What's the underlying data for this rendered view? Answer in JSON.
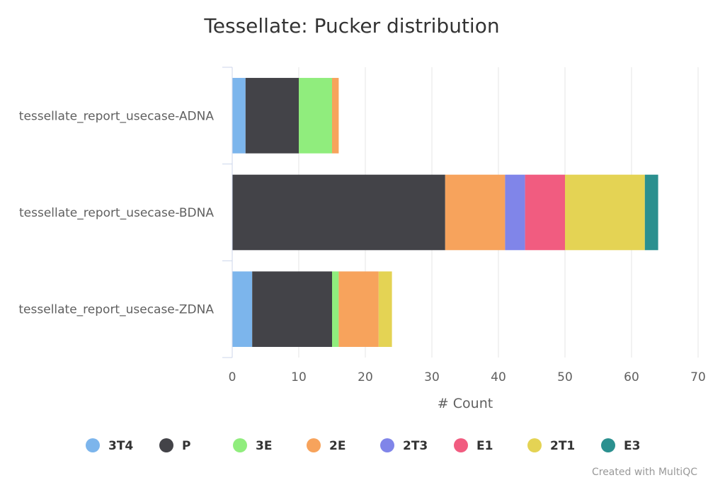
{
  "chart_data": {
    "type": "bar",
    "orientation": "horizontal",
    "stacked": true,
    "title": "Tessellate: Pucker distribution",
    "xlabel": "# Count",
    "xlim": [
      0,
      70
    ],
    "x_ticks": [
      "0",
      "10",
      "20",
      "30",
      "40",
      "50",
      "60",
      "70"
    ],
    "grid": true,
    "legend_position": "bottom",
    "categories": [
      "tessellate_report_usecase-ADNA",
      "tessellate_report_usecase-BDNA",
      "tessellate_report_usecase-ZDNA"
    ],
    "series": [
      {
        "name": "3T4",
        "color": "#7cb5ec",
        "values": [
          2,
          0,
          3
        ]
      },
      {
        "name": "P",
        "color": "#434348",
        "values": [
          8,
          32,
          12
        ]
      },
      {
        "name": "3E",
        "color": "#90ed7d",
        "values": [
          5,
          0,
          1
        ]
      },
      {
        "name": "2E",
        "color": "#f7a35c",
        "values": [
          1,
          9,
          6
        ]
      },
      {
        "name": "2T3",
        "color": "#8085e9",
        "values": [
          0,
          3,
          0
        ]
      },
      {
        "name": "E1",
        "color": "#f15c80",
        "values": [
          0,
          6,
          0
        ]
      },
      {
        "name": "2T1",
        "color": "#e4d354",
        "values": [
          0,
          12,
          2
        ]
      },
      {
        "name": "E3",
        "color": "#2b908f",
        "values": [
          0,
          2,
          0
        ]
      }
    ]
  },
  "credits": "Created with MultiQC"
}
